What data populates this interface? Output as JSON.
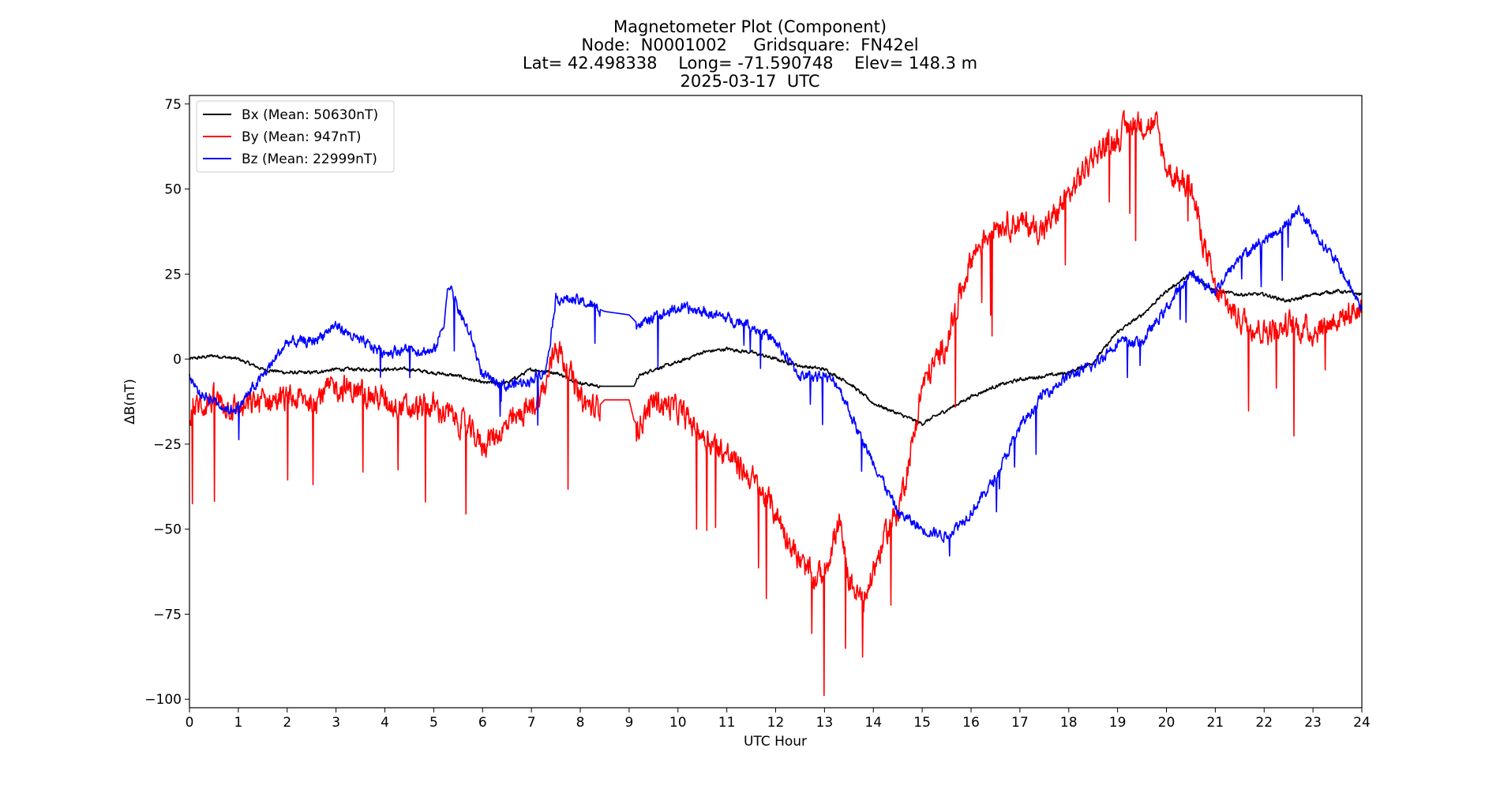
{
  "chart_data": {
    "type": "line",
    "title": "Magnetometer Plot (Component)",
    "title_lines": [
      "Magnetometer Plot (Component)",
      "Node:  N0001002     Gridsquare:  FN42el",
      "Lat= 42.498338    Long= -71.590748    Elev= 148.3 m",
      "2025-03-17  UTC"
    ],
    "xlabel": "UTC Hour",
    "ylabel": "ΔB(nT)",
    "xlim": [
      0,
      24
    ],
    "ylim": [
      -100,
      80
    ],
    "xticks": [
      "0",
      "1",
      "2",
      "3",
      "4",
      "5",
      "6",
      "7",
      "8",
      "9",
      "10",
      "11",
      "12",
      "13",
      "14",
      "15",
      "16",
      "17",
      "18",
      "19",
      "20",
      "21",
      "22",
      "23",
      "24"
    ],
    "yticks": [
      "−100",
      "−75",
      "−50",
      "−25",
      "0",
      "25",
      "50",
      "75"
    ],
    "ytick_values": [
      -100,
      -75,
      -50,
      -25,
      0,
      25,
      50,
      75
    ],
    "grid": false,
    "legend_position": "top-left",
    "series": [
      {
        "name": "Bx (Mean: 50630nT)",
        "color": "#000000",
        "noise": 0.8,
        "x": [
          0,
          0.5,
          1,
          1.5,
          2,
          2.5,
          3,
          3.5,
          4,
          4.5,
          5,
          5.5,
          6,
          6.5,
          7,
          7.5,
          8,
          8.4,
          8.5,
          9,
          9.1,
          9.2,
          9.5,
          10,
          10.5,
          11,
          11.5,
          12,
          12.5,
          13,
          13.5,
          14,
          14.5,
          15,
          15.5,
          16,
          16.5,
          17,
          17.5,
          18,
          18.5,
          19,
          19.5,
          20,
          20.5,
          21,
          21.5,
          22,
          22.5,
          23,
          23.5,
          24
        ],
        "y": [
          0,
          1,
          0,
          -3,
          -4,
          -4,
          -3,
          -3,
          -3,
          -3,
          -4,
          -5,
          -7,
          -7,
          -3,
          -4,
          -7,
          -8,
          -8,
          -8,
          -8,
          -5,
          -3,
          -1,
          2,
          3,
          2,
          0,
          -2,
          -3,
          -7,
          -13,
          -16,
          -19,
          -15,
          -11,
          -8,
          -6,
          -5,
          -4,
          -1,
          8,
          13,
          20,
          25,
          20,
          19,
          19,
          17,
          19,
          20,
          19
        ]
      },
      {
        "name": "By (Mean: 947nT)",
        "color": "#ff0000",
        "noise": 6,
        "x": [
          0,
          0.5,
          1,
          1.5,
          2,
          2.5,
          3,
          3.5,
          4,
          4.5,
          5,
          5.5,
          6,
          6.5,
          7,
          7.3,
          7.5,
          7.8,
          8,
          8.3,
          8.5,
          9,
          9.1,
          9.2,
          9.5,
          10,
          10.5,
          11,
          11.5,
          12,
          12.5,
          12.8,
          13,
          13.3,
          13.5,
          13.8,
          14,
          14.3,
          14.5,
          14.8,
          15,
          15.5,
          16,
          16.5,
          17,
          17.5,
          18,
          18.5,
          19,
          19.3,
          19.8,
          20,
          20.5,
          21,
          21.5,
          22,
          22.5,
          23,
          23.5,
          24
        ],
        "y": [
          -15,
          -12,
          -15,
          -12,
          -12,
          -12,
          -8,
          -10,
          -12,
          -15,
          -14,
          -18,
          -25,
          -20,
          -14,
          -8,
          5,
          -5,
          -12,
          -15,
          -12,
          -12,
          -18,
          -20,
          -12,
          -15,
          -22,
          -28,
          -35,
          -45,
          -60,
          -65,
          -62,
          -48,
          -65,
          -72,
          -62,
          -50,
          -45,
          -25,
          -8,
          5,
          30,
          40,
          40,
          38,
          48,
          60,
          65,
          70,
          68,
          56,
          50,
          20,
          12,
          8,
          10,
          8,
          12,
          15
        ]
      },
      {
        "name": "Bz (Mean: 22999nT)",
        "color": "#0000ff",
        "noise": 2.5,
        "x": [
          0,
          0.2,
          0.5,
          0.8,
          1,
          1.5,
          2,
          2.5,
          3,
          3.5,
          4,
          4.5,
          5,
          5.2,
          5.3,
          5.5,
          5.8,
          6,
          6.5,
          7,
          7.3,
          7.5,
          8,
          8.5,
          9,
          9.2,
          9.5,
          10,
          10.5,
          11,
          11.5,
          12,
          12.5,
          13,
          13.3,
          13.5,
          13.8,
          14,
          14.5,
          15,
          15.5,
          16,
          16.5,
          17,
          17.5,
          18,
          18.5,
          19,
          19.5,
          20,
          20.5,
          21,
          21.5,
          22,
          22.5,
          22.7,
          23,
          23.5,
          24
        ],
        "y": [
          -5,
          -10,
          -12,
          -15,
          -14,
          -5,
          5,
          5,
          10,
          5,
          2,
          3,
          2,
          10,
          22,
          15,
          5,
          -5,
          -8,
          -6,
          -3,
          18,
          17,
          14,
          13,
          10,
          12,
          15,
          14,
          12,
          10,
          5,
          -5,
          -5,
          -8,
          -15,
          -25,
          -30,
          -45,
          -50,
          -52,
          -45,
          -35,
          -20,
          -10,
          -5,
          -2,
          5,
          5,
          15,
          25,
          20,
          30,
          35,
          40,
          44,
          38,
          28,
          15
        ]
      }
    ]
  }
}
